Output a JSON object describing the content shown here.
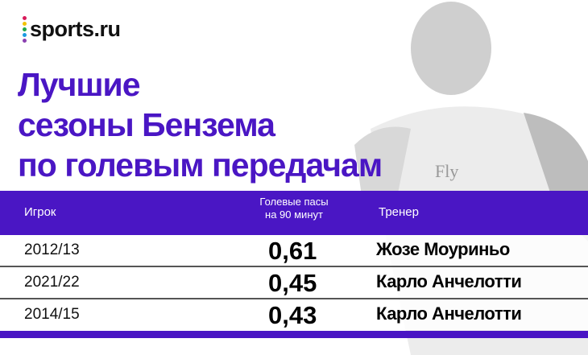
{
  "logo": {
    "text": "sports.ru",
    "dot_colors": [
      "#d81b5a",
      "#f2c200",
      "#20a84a",
      "#1a9be0",
      "#8a3fb0"
    ]
  },
  "title": {
    "lines": [
      "Лучшие",
      "сезоны Бензема",
      "по голевым передачам"
    ]
  },
  "table": {
    "headers": {
      "player": "Игрок",
      "assists_line1": "Голевые пасы",
      "assists_line2": "на 90 минут",
      "coach": "Тренер"
    },
    "rows": [
      {
        "season": "2012/13",
        "value": "0,61",
        "coach": "Жозе Моуриньо"
      },
      {
        "season": "2021/22",
        "value": "0,45",
        "coach": "Карло Анчелотти"
      },
      {
        "season": "2014/15",
        "value": "0,43",
        "coach": "Карло Анчелотти"
      }
    ]
  },
  "colors": {
    "accent": "#4a16c4"
  }
}
